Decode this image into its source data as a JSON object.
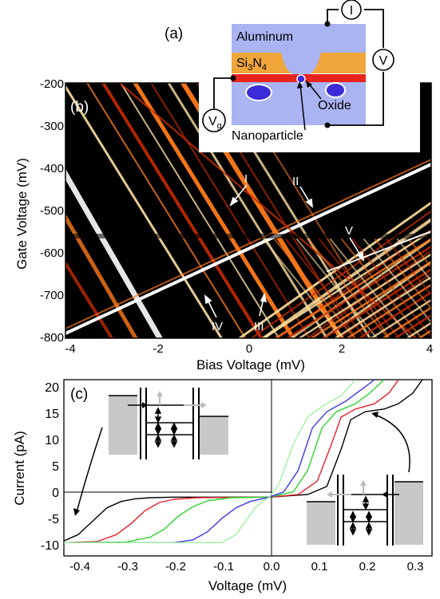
{
  "figure": {
    "panel_a": {
      "label": "(a)",
      "aluminum": "Aluminum",
      "sin_main": "Si",
      "sin_sub3": "3",
      "sin_n": "N",
      "sin_sub4": "4",
      "oxide": "Oxide",
      "nanoparticle": "Nanoparticle",
      "meter_i": "I",
      "meter_v": "V",
      "meter_vg_main": "V",
      "meter_vg_sub": "g",
      "colors": {
        "aluminum": "#aab4f2",
        "si3n4": "#f0a63a",
        "red_layer": "#e8241f",
        "particle": "#3b2bd9"
      }
    },
    "panel_b": {
      "label": "(b)",
      "xlabel": "Bias Voltage (mV)",
      "ylabel": "Gate Voltage (mV)",
      "x_ticks": [
        "-4",
        "-2",
        "0",
        "2",
        "4"
      ],
      "y_ticks": [
        "-200",
        "-300",
        "-400",
        "-500",
        "-600",
        "-700",
        "-800"
      ],
      "annotations": [
        "I",
        "II",
        "III",
        "IV",
        "V"
      ],
      "colormap": [
        "#000000",
        "#6a0a00",
        "#c62a00",
        "#ff7a1a",
        "#ffe0a0",
        "#ffffff"
      ]
    },
    "panel_c": {
      "label": "(c)",
      "xlabel": "Voltage (mV)",
      "ylabel": "Current (pA)",
      "x_ticks": [
        "-0.4",
        "-0.3",
        "-0.2",
        "-0.1",
        "0.0",
        "0.1",
        "0.2",
        "0.3"
      ],
      "y_ticks": [
        "20",
        "15",
        "10",
        "5",
        "0",
        "-5",
        "-10"
      ],
      "xlim": [
        -0.43,
        0.34
      ],
      "ylim": [
        -11,
        22
      ],
      "chart_data": {
        "type": "line",
        "xlabel": "Voltage (mV)",
        "ylabel": "Current (pA)",
        "xlim": [
          -0.43,
          0.34
        ],
        "ylim": [
          -11,
          22
        ],
        "series": [
          {
            "color": "#000000",
            "x": [
              -0.43,
              -0.4,
              -0.37,
              -0.34,
              -0.31,
              -0.28,
              -0.25,
              -0.2,
              0.0,
              0.08,
              0.12,
              0.15,
              0.17,
              0.2,
              0.24,
              0.27,
              0.3,
              0.32
            ],
            "y": [
              -8.2,
              -7.0,
              -4.5,
              -2.0,
              -0.8,
              -0.3,
              -0.1,
              0,
              0,
              0.5,
              2.0,
              9.0,
              14.5,
              16.0,
              16.5,
              17.5,
              19.5,
              22
            ]
          },
          {
            "color": "#e8202a",
            "x": [
              -0.43,
              -0.36,
              -0.32,
              -0.29,
              -0.26,
              -0.23,
              -0.2,
              -0.15,
              0.0,
              0.06,
              0.1,
              0.13,
              0.15,
              0.18,
              0.22,
              0.25,
              0.27
            ],
            "y": [
              -8.5,
              -8.3,
              -7.0,
              -5.0,
              -2.5,
              -1.0,
              -0.4,
              -0.1,
              0,
              0.5,
              3.0,
              10.0,
              15.0,
              16.5,
              17.5,
              19.5,
              22
            ]
          },
          {
            "color": "#2cd62c",
            "x": [
              -0.43,
              -0.3,
              -0.25,
              -0.22,
              -0.19,
              -0.16,
              -0.13,
              -0.08,
              0.0,
              0.05,
              0.08,
              0.11,
              0.14,
              0.18,
              0.21,
              0.24
            ],
            "y": [
              -8.5,
              -8.4,
              -7.5,
              -6.0,
              -3.5,
              -1.8,
              -0.7,
              -0.1,
              0,
              1.0,
              5.0,
              13.0,
              16.0,
              17.5,
              19.5,
              22
            ]
          },
          {
            "color": "#3a36e8",
            "x": [
              -0.43,
              -0.2,
              -0.16,
              -0.13,
              -0.1,
              -0.07,
              -0.04,
              0.0,
              0.03,
              0.06,
              0.09,
              0.12,
              0.16,
              0.19,
              0.22
            ],
            "y": [
              -8.5,
              -8.5,
              -8.0,
              -6.5,
              -4.0,
              -2.0,
              -0.8,
              0,
              1.0,
              5.0,
              13.0,
              16.0,
              18.0,
              20.0,
              22
            ]
          },
          {
            "color": "#9ff0a0",
            "x": [
              -0.43,
              -0.1,
              -0.07,
              -0.05,
              -0.03,
              -0.01,
              0.0,
              0.02,
              0.05,
              0.08,
              0.11,
              0.15,
              0.18
            ],
            "y": [
              -8.5,
              -8.5,
              -7.0,
              -4.5,
              -2.0,
              -0.5,
              0,
              2.5,
              10.0,
              15.0,
              17.0,
              19.0,
              22
            ]
          }
        ]
      }
    }
  }
}
